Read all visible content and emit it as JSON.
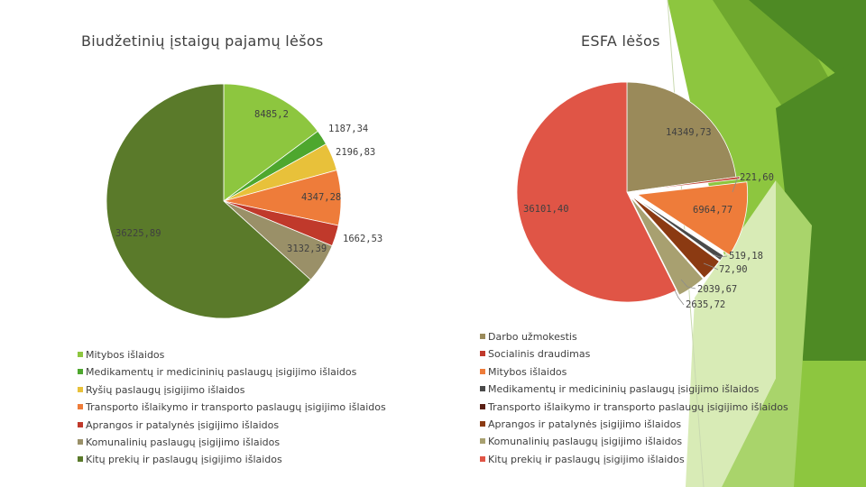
{
  "chart_data": [
    {
      "type": "pie",
      "title": "Biudžetinių įstaigų pajamų lėšos",
      "labels": [
        "Mitybos išlaidos",
        "Medikamentų ir medicininių paslaugų įsigijimo išlaidos",
        "Ryšių paslaugų įsigijimo išlaidos",
        "Transporto išlaikymo ir transporto paslaugų įsigijimo išlaidos",
        "Aprangos ir patalynės įsigijimo išlaidos",
        "Komunalinių paslaugų įsigijimo išlaidos",
        "Kitų prekių ir paslaugų įsigijimo išlaidos"
      ],
      "values": [
        8485.2,
        1187.34,
        2196.83,
        4347.28,
        1662.53,
        3132.39,
        36225.89
      ],
      "data_labels": [
        "8485,2",
        "1187,34",
        "2196,83",
        "4347,28",
        "1662,53",
        "3132,39",
        "36225,89"
      ],
      "colors": [
        "#8dc63f",
        "#4ea72e",
        "#e8c13a",
        "#ee7c3a",
        "#c0392b",
        "#9a9068",
        "#5a7a2a"
      ]
    },
    {
      "type": "pie",
      "title": "ESFA lėšos",
      "labels": [
        "Darbo užmokestis",
        "Socialinis draudimas",
        "Mitybos išlaidos",
        "Medikamentų ir medicininių paslaugų įsigijimo išlaidos",
        "Transporto išlaikymo ir transporto paslaugų įsigijimo išlaidos",
        "Aprangos ir patalynės įsigijimo išlaidos",
        "Komunalinių paslaugų įsigijimo išlaidos",
        "Kitų prekių ir paslaugų įsigijimo išlaidos"
      ],
      "values": [
        14349.73,
        221.6,
        6964.77,
        519.18,
        72.9,
        2039.67,
        2635.72,
        36101.4
      ],
      "data_labels": [
        "14349,73",
        "221,60",
        "6964,77",
        "519,18",
        "72,90",
        "2039,67",
        "2635,72",
        "36101,40"
      ],
      "colors": [
        "#9a8a5a",
        "#c0392b",
        "#ee7c3a",
        "#4a4a4a",
        "#5a1f14",
        "#8b3a12",
        "#a8a070",
        "#e05546"
      ]
    }
  ],
  "style": {
    "decor_colors": [
      "#8dc63f",
      "#6fa82e",
      "#4e8a24",
      "#a9d46b",
      "#d8ebb6"
    ],
    "leader_color": "#8c8c8c"
  }
}
